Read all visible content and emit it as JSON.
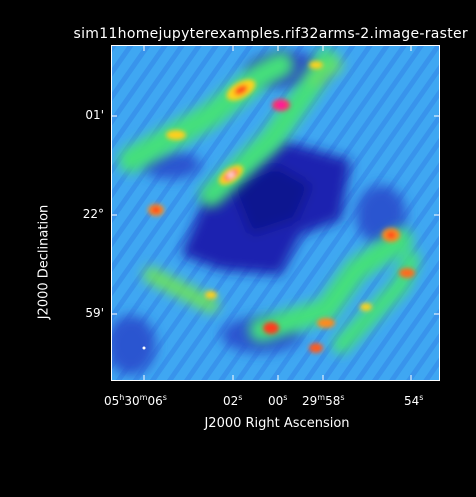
{
  "chart_data": {
    "type": "heatmap",
    "title": "sim11homejupyterexamples.rif32arms-2.image-raster",
    "xlabel": "J2000 Right Ascension",
    "ylabel": "J2000 Declination",
    "x_ticks": [
      {
        "h": "05",
        "m": "30",
        "s": "06"
      },
      {
        "h": "",
        "m": "",
        "s": "02"
      },
      {
        "h": "",
        "m": "",
        "s": "00"
      },
      {
        "h": "",
        "m": "29",
        "s": "58"
      },
      {
        "h": "",
        "m": "",
        "s": "54"
      }
    ],
    "y_ticks": [
      "01'",
      "22°",
      "59'"
    ],
    "colormap": "rainbow",
    "colors": {
      "low": "#1a1aa8",
      "mid": "#3aa8ff",
      "high": "#ff2200",
      "peak": "#ffffff"
    }
  }
}
